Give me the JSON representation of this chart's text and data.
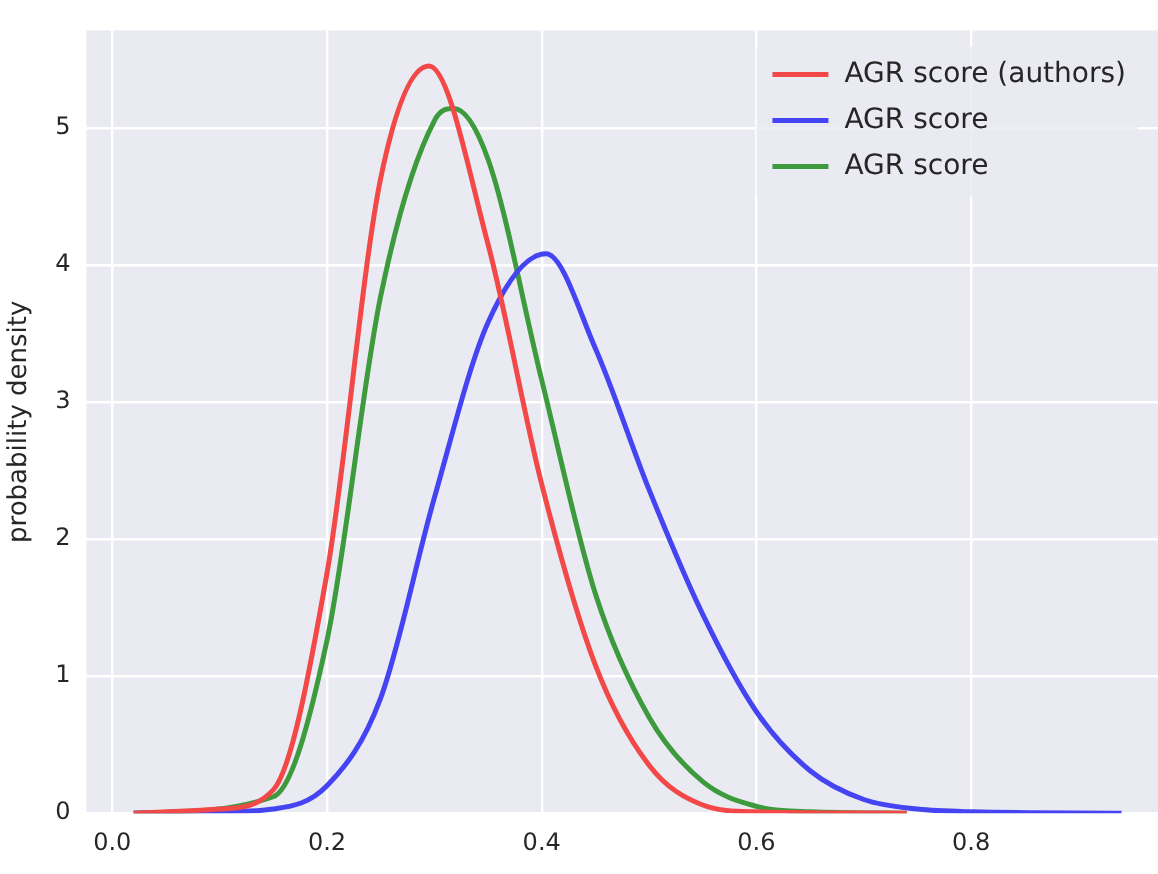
{
  "chart_data": {
    "type": "line",
    "ylabel": "probability density",
    "xlim": [
      -0.024,
      0.974
    ],
    "ylim": [
      0,
      5.71
    ],
    "xticks": [
      {
        "value": 0,
        "label": "0.0"
      },
      {
        "value": 0.2,
        "label": "0.2"
      },
      {
        "value": 0.4,
        "label": "0.4"
      },
      {
        "value": 0.6,
        "label": "0.6"
      },
      {
        "value": 0.8,
        "label": "0.8"
      }
    ],
    "yticks": [
      0,
      1,
      2,
      3,
      4,
      5
    ],
    "grid": true,
    "legend": "top right",
    "marker": "none",
    "line_style": "solid",
    "series": [
      {
        "name": "AGR score (authors)",
        "color": "#f24848",
        "x": [
          0.02,
          0.1,
          0.15,
          0.2,
          0.25,
          0.295,
          0.35,
          0.4,
          0.45,
          0.5,
          0.55,
          0.6,
          0.74
        ],
        "values": [
          0,
          0.03,
          0.17,
          1.75,
          4.63,
          5.45,
          4.15,
          2.4,
          1.08,
          0.35,
          0.06,
          0.01,
          0
        ]
      },
      {
        "name": "AGR score",
        "color": "#4444f2",
        "x": [
          0.02,
          0.1,
          0.15,
          0.2,
          0.25,
          0.3,
          0.35,
          0.404,
          0.45,
          0.5,
          0.55,
          0.6,
          0.65,
          0.7,
          0.75,
          0.8,
          0.94
        ],
        "values": [
          0,
          0.01,
          0.03,
          0.2,
          0.84,
          2.3,
          3.58,
          4.08,
          3.39,
          2.36,
          1.45,
          0.74,
          0.31,
          0.1,
          0.03,
          0.01,
          0
        ]
      },
      {
        "name": "AGR score",
        "color": "#3d9a3d",
        "x": [
          0.02,
          0.15,
          0.2,
          0.25,
          0.3,
          0.318,
          0.35,
          0.4,
          0.45,
          0.5,
          0.55,
          0.6,
          0.65,
          0.74
        ],
        "values": [
          0,
          0.12,
          1.26,
          3.77,
          5.05,
          5.14,
          4.77,
          3.16,
          1.6,
          0.7,
          0.23,
          0.05,
          0.01,
          0
        ]
      }
    ]
  }
}
